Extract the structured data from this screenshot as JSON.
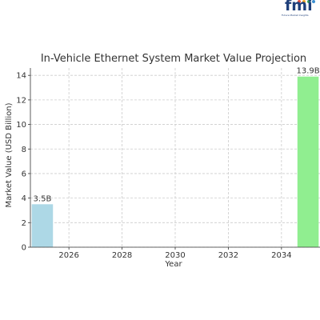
{
  "chart_data": {
    "type": "bar",
    "title": "In-Vehicle Ethernet System Market Value Projection",
    "xlabel": "Year",
    "ylabel": "Market Value (USD Billion)",
    "categories": [
      2025,
      2035
    ],
    "values": [
      3.5,
      13.9
    ],
    "data_labels": [
      "3.5B",
      "13.9B"
    ],
    "bar_colors": [
      "#add8e6",
      "#90ee90"
    ],
    "xlim": [
      2024.55,
      2035.45
    ],
    "ylim": [
      0,
      14.6
    ],
    "x_ticks": [
      2026,
      2028,
      2030,
      2032,
      2034
    ],
    "y_ticks": [
      0,
      2,
      4,
      6,
      8,
      10,
      12,
      14
    ],
    "grid": true
  },
  "logo": {
    "text": "fmi",
    "subtext": "Future Market Insights",
    "dot_colors": [
      "#e94e3c",
      "#f7a823",
      "#3aa757",
      "#3b8ed0"
    ]
  }
}
